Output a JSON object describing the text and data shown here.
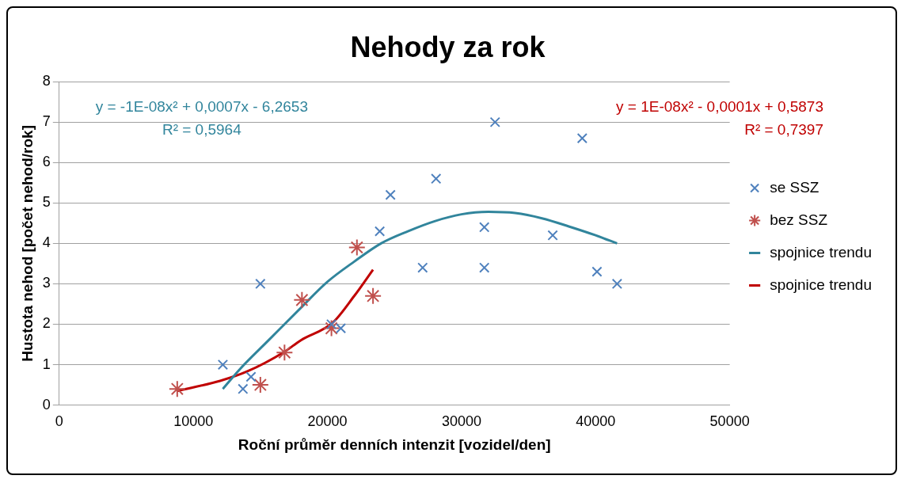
{
  "chart_data": {
    "type": "scatter",
    "title": "Nehody za rok",
    "xlabel": "Roční průměr denních intenzit [vozidel/den]",
    "ylabel": "Hustota nehod [počet nehod/rok]",
    "annotations": [
      "y = -1E-08x² + 0,0007x - 6,2653",
      "R² = 0,5964",
      "y = 1E-08x² - 0,0001x + 0,5873",
      "R² = 0,7397"
    ],
    "xlim": [
      0,
      50000
    ],
    "xticks": [
      0,
      10000,
      20000,
      30000,
      40000,
      50000
    ],
    "ylim": [
      0,
      8
    ],
    "yticks": [
      0,
      1,
      2,
      3,
      4,
      5,
      6,
      7,
      8
    ],
    "grid": "y",
    "legend": "right",
    "series": [
      {
        "name": "se SSZ",
        "color": "#4f81bd",
        "marker": "cross",
        "x": [
          12200,
          13700,
          14300,
          15000,
          20300,
          21000,
          23900,
          24700,
          27100,
          28100,
          32500,
          31700,
          31700,
          36800,
          39000,
          40100,
          41600
        ],
        "values": [
          1.0,
          0.4,
          0.7,
          3.0,
          2.0,
          1.9,
          4.3,
          5.2,
          3.4,
          5.6,
          7.0,
          4.4,
          3.4,
          4.2,
          6.6,
          3.3,
          3.0
        ]
      },
      {
        "name": "bez SSZ",
        "color": "#c0504d",
        "x": [
          8800,
          15000,
          16800,
          18100,
          20300,
          22200,
          23400
        ],
        "values": [
          0.4,
          0.5,
          1.3,
          2.6,
          1.9,
          3.9,
          2.7
        ]
      },
      {
        "name": "spojnice trendu",
        "type": "line",
        "color": "#31859c",
        "marker": "none",
        "x": [
          12200,
          13500,
          15600,
          18000,
          20000,
          22000,
          24000,
          26000,
          28000,
          30000,
          32000,
          34000,
          36000,
          38000,
          40000,
          41600
        ],
        "values": [
          0.4,
          0.9,
          1.6,
          2.4,
          3.05,
          3.55,
          4.0,
          4.3,
          4.55,
          4.72,
          4.78,
          4.75,
          4.62,
          4.42,
          4.2,
          4.0
        ]
      },
      {
        "name": "spojnice trendu",
        "type": "line",
        "color": "#c00000",
        "marker": "none",
        "x": [
          8800,
          12000,
          14000,
          16800,
          18000,
          20400,
          22000,
          23400
        ],
        "values": [
          0.35,
          0.6,
          0.83,
          1.32,
          1.6,
          2.04,
          2.7,
          3.35
        ]
      }
    ]
  }
}
